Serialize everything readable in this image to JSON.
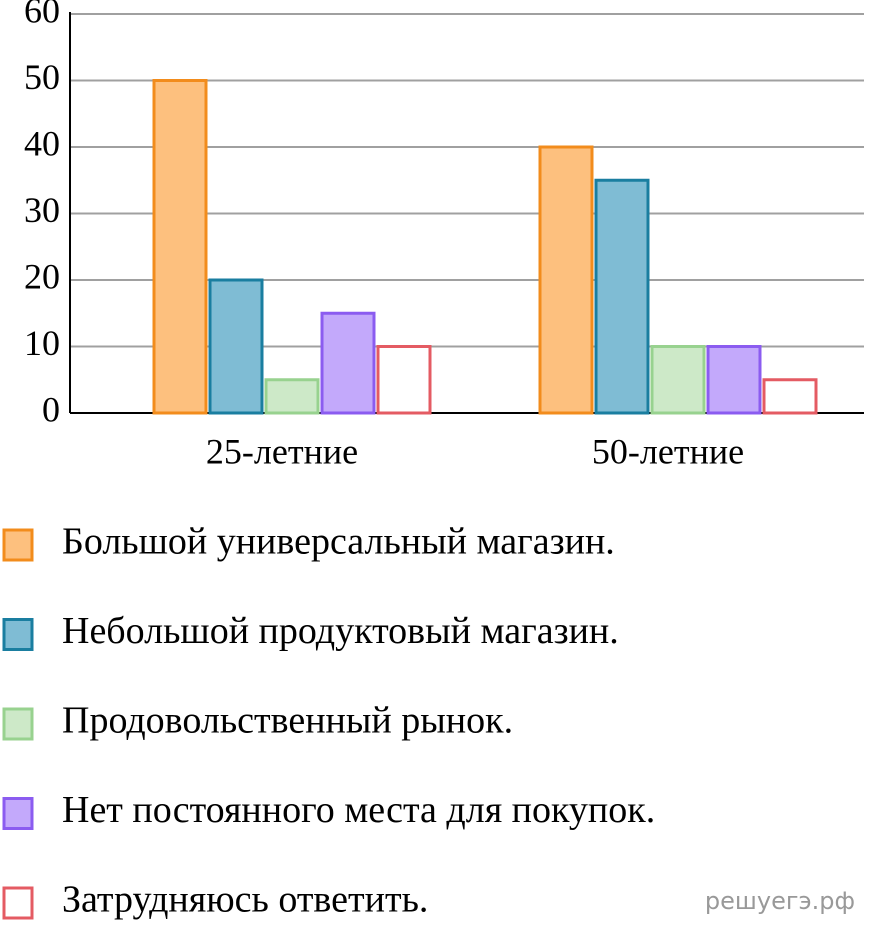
{
  "chart_data": {
    "type": "bar",
    "categories": [
      "25-летние",
      "50-летние"
    ],
    "series": [
      {
        "name": "Большой универсальный магазин.",
        "color": "#fdc07e",
        "edge": "#f28c1c",
        "values": [
          50,
          40
        ]
      },
      {
        "name": "Небольшой продуктовый магазин.",
        "color": "#7fbcd4",
        "edge": "#1a7ea0",
        "values": [
          20,
          35
        ]
      },
      {
        "name": "Продовольственный рынок.",
        "color": "#cde9c8",
        "edge": "#98d28f",
        "values": [
          5,
          10
        ]
      },
      {
        "name": "Нет постоянного места для покупок.",
        "color": "#c3a9fb",
        "edge": "#8b5cf0",
        "values": [
          15,
          10
        ]
      },
      {
        "name": "Затрудняюсь ответить.",
        "color": "#ffffff",
        "edge": "#e45b63",
        "values": [
          10,
          5
        ]
      }
    ],
    "ylim": [
      0,
      60
    ],
    "yticks": [
      0,
      10,
      20,
      30,
      40,
      50,
      60
    ],
    "grid": true,
    "watermark": "решуегэ.рф"
  }
}
